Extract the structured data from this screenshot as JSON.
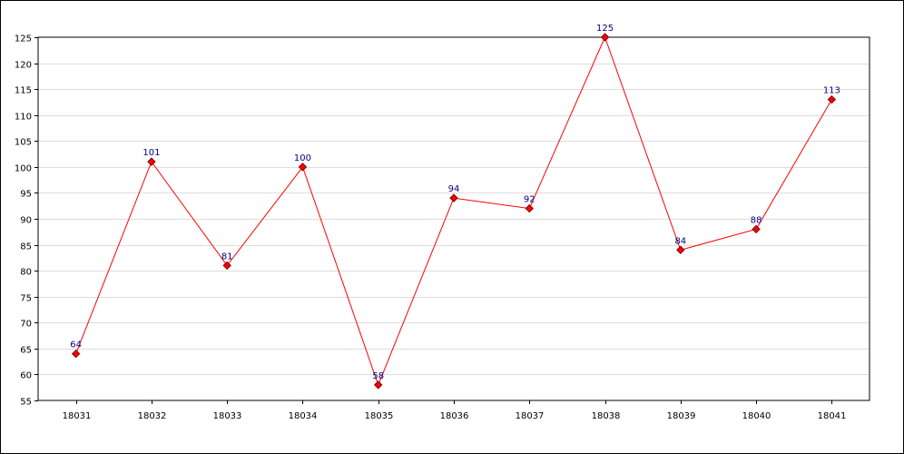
{
  "chart_data": {
    "type": "line",
    "title": "",
    "xlabel": "",
    "ylabel": "",
    "categories": [
      "18031",
      "18032",
      "18033",
      "18034",
      "18035",
      "18036",
      "18037",
      "18038",
      "18039",
      "18040",
      "18041"
    ],
    "series": [
      {
        "values": [
          64,
          101,
          81,
          100,
          58,
          94,
          92,
          125,
          84,
          88,
          113
        ],
        "labels": [
          "64",
          "101",
          "81",
          "100",
          "58",
          "94",
          "92",
          "125",
          "84",
          "88",
          "113"
        ]
      }
    ],
    "ylim": [
      55,
      125
    ],
    "yticks": [
      "55",
      "60",
      "65",
      "70",
      "75",
      "80",
      "85",
      "90",
      "95",
      "100",
      "105",
      "110",
      "115",
      "120",
      "125"
    ],
    "grid": true,
    "legend": "none",
    "colors": {
      "line": "#ff0000",
      "marker_fill": "#ff0000",
      "marker_stroke": "#800000",
      "data_label": "#000080",
      "grid": "#dddddd",
      "axis": "#000000"
    }
  }
}
